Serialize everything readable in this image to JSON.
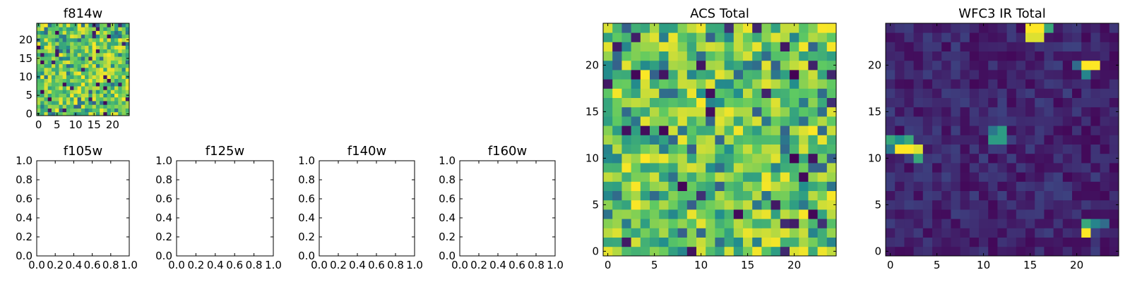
{
  "figure": {
    "background": "#ffffff",
    "colormap": "viridis",
    "colormap_stops": [
      "#440154",
      "#3b528b",
      "#21918c",
      "#5ec962",
      "#fde725"
    ]
  },
  "chart_data": [
    {
      "id": "f814w",
      "type": "heatmap",
      "title": "f814w",
      "grid_size": 25,
      "x_ticks": [
        0,
        5,
        10,
        15,
        20
      ],
      "y_ticks": [
        0,
        5,
        10,
        15,
        20
      ],
      "xlim": [
        -0.5,
        24.5
      ],
      "ylim": [
        -0.5,
        24.5
      ],
      "value_range": [
        0,
        1
      ],
      "value_distribution": "mostly mid-to-high values (green/yellow) with scattered low (dark) pixels",
      "seed": 11,
      "hotspots": []
    },
    {
      "id": "f105w",
      "type": "empty",
      "title": "f105w",
      "xlim": [
        0,
        1
      ],
      "ylim": [
        0,
        1
      ],
      "x_ticks": [
        "0.0",
        "0.2",
        "0.4",
        "0.6",
        "0.8",
        "1.0"
      ],
      "y_ticks": [
        "0.0",
        "0.2",
        "0.4",
        "0.6",
        "0.8",
        "1.0"
      ]
    },
    {
      "id": "f125w",
      "type": "empty",
      "title": "f125w",
      "xlim": [
        0,
        1
      ],
      "ylim": [
        0,
        1
      ],
      "x_ticks": [
        "0.0",
        "0.2",
        "0.4",
        "0.6",
        "0.8",
        "1.0"
      ],
      "y_ticks": [
        "0.0",
        "0.2",
        "0.4",
        "0.6",
        "0.8",
        "1.0"
      ]
    },
    {
      "id": "f140w",
      "type": "empty",
      "title": "f140w",
      "xlim": [
        0,
        1
      ],
      "ylim": [
        0,
        1
      ],
      "x_ticks": [
        "0.0",
        "0.2",
        "0.4",
        "0.6",
        "0.8",
        "1.0"
      ],
      "y_ticks": [
        "0.0",
        "0.2",
        "0.4",
        "0.6",
        "0.8",
        "1.0"
      ]
    },
    {
      "id": "f160w",
      "type": "empty",
      "title": "f160w",
      "xlim": [
        0,
        1
      ],
      "ylim": [
        0,
        1
      ],
      "x_ticks": [
        "0.0",
        "0.2",
        "0.4",
        "0.6",
        "0.8",
        "1.0"
      ],
      "y_ticks": [
        "0.0",
        "0.2",
        "0.4",
        "0.6",
        "0.8",
        "1.0"
      ]
    },
    {
      "id": "acs-total",
      "type": "heatmap",
      "title": "ACS Total",
      "grid_size": 25,
      "x_ticks": [
        0,
        5,
        10,
        15,
        20
      ],
      "y_ticks": [
        0,
        5,
        10,
        15,
        20
      ],
      "xlim": [
        -0.5,
        24.5
      ],
      "ylim": [
        -0.5,
        24.5
      ],
      "value_range": [
        0,
        1
      ],
      "value_distribution": "mostly mid-to-high values (green/yellow) with scattered low (dark) pixels",
      "seed": 29,
      "hotspots": []
    },
    {
      "id": "wfc3-ir-total",
      "type": "heatmap",
      "title": "WFC3 IR Total",
      "grid_size": 25,
      "x_ticks": [
        0,
        5,
        10,
        15,
        20
      ],
      "y_ticks": [
        0,
        5,
        10,
        15,
        20
      ],
      "xlim": [
        -0.5,
        24.5
      ],
      "ylim": [
        -0.5,
        24.5
      ],
      "value_range": [
        0,
        1
      ],
      "value_distribution": "mostly very low values (dark purple) with a few bright compact sources",
      "seed": 53,
      "hotspots": [
        {
          "x": 15,
          "y": 24,
          "v": 1.0
        },
        {
          "x": 16,
          "y": 24,
          "v": 1.0
        },
        {
          "x": 17,
          "y": 24,
          "v": 0.6
        },
        {
          "x": 15,
          "y": 23,
          "v": 0.95
        },
        {
          "x": 16,
          "y": 23,
          "v": 0.95
        },
        {
          "x": 21,
          "y": 20,
          "v": 1.0
        },
        {
          "x": 22,
          "y": 20,
          "v": 1.0
        },
        {
          "x": 20,
          "y": 20,
          "v": 0.35
        },
        {
          "x": 21,
          "y": 19,
          "v": 0.45
        },
        {
          "x": 0,
          "y": 12,
          "v": 0.6
        },
        {
          "x": 1,
          "y": 12,
          "v": 0.5
        },
        {
          "x": 2,
          "y": 12,
          "v": 0.6
        },
        {
          "x": 1,
          "y": 11,
          "v": 1.0
        },
        {
          "x": 2,
          "y": 11,
          "v": 1.0
        },
        {
          "x": 3,
          "y": 11,
          "v": 0.95
        },
        {
          "x": 0,
          "y": 11,
          "v": 0.4
        },
        {
          "x": 3,
          "y": 10,
          "v": 0.6
        },
        {
          "x": 12,
          "y": 13,
          "v": 0.55
        },
        {
          "x": 11,
          "y": 12,
          "v": 0.55
        },
        {
          "x": 12,
          "y": 12,
          "v": 0.55
        },
        {
          "x": 11,
          "y": 13,
          "v": 0.4
        },
        {
          "x": 21,
          "y": 3,
          "v": 0.6
        },
        {
          "x": 22,
          "y": 3,
          "v": 0.45
        },
        {
          "x": 23,
          "y": 3,
          "v": 0.35
        },
        {
          "x": 21,
          "y": 2,
          "v": 1.0
        }
      ]
    }
  ]
}
